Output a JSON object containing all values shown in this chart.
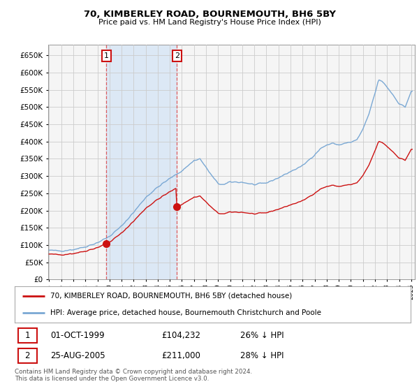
{
  "title": "70, KIMBERLEY ROAD, BOURNEMOUTH, BH6 5BY",
  "subtitle": "Price paid vs. HM Land Registry's House Price Index (HPI)",
  "ylim": [
    0,
    680000
  ],
  "ytick_values": [
    0,
    50000,
    100000,
    150000,
    200000,
    250000,
    300000,
    350000,
    400000,
    450000,
    500000,
    550000,
    600000,
    650000
  ],
  "sale1_year": 1999.75,
  "sale2_year": 2005.58,
  "sale1_price": 104232,
  "sale2_price": 211000,
  "legend_line1": "70, KIMBERLEY ROAD, BOURNEMOUTH, BH6 5BY (detached house)",
  "legend_line2": "HPI: Average price, detached house, Bournemouth Christchurch and Poole",
  "footer": "Contains HM Land Registry data © Crown copyright and database right 2024.\nThis data is licensed under the Open Government Licence v3.0.",
  "hpi_color": "#7aa8d4",
  "sale_color": "#cc1111",
  "vline_color": "#dd4444",
  "shade_color": "#dce8f5",
  "background_color": "#ffffff",
  "grid_color": "#cccccc",
  "plot_bg_color": "#f5f5f5"
}
